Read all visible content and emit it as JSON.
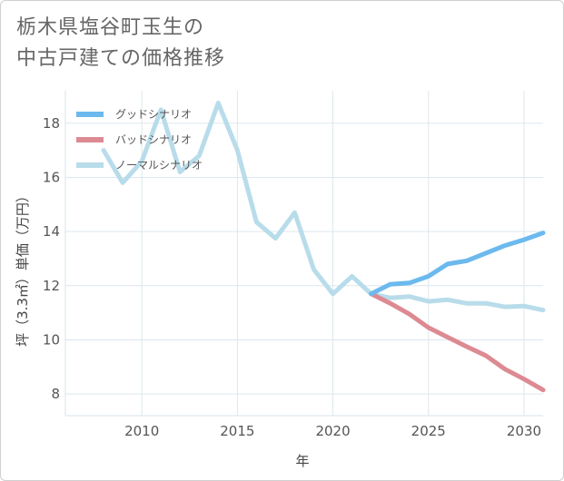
{
  "title_line1": "栃木県塩谷町玉生の",
  "title_line2": "中古戸建ての価格推移",
  "chart_data": {
    "type": "line",
    "xlabel": "年",
    "ylabel": "坪（3.3㎡）単価（万円）",
    "xlim": [
      2006,
      2031
    ],
    "ylim": [
      7.2,
      19.2
    ],
    "x_ticks": [
      2010,
      2015,
      2020,
      2025,
      2030
    ],
    "y_ticks": [
      8,
      10,
      12,
      14,
      16,
      18
    ],
    "grid": true,
    "legend_position": "top-left",
    "series": [
      {
        "name": "グッドシナリオ",
        "color": "#6cb9ee",
        "x": [
          2022,
          2023,
          2024,
          2025,
          2026,
          2027,
          2028,
          2029,
          2030,
          2031
        ],
        "y": [
          11.7,
          12.05,
          12.1,
          12.35,
          12.8,
          12.92,
          13.2,
          13.48,
          13.7,
          13.95
        ]
      },
      {
        "name": "バッドシナリオ",
        "color": "#dd8a92",
        "x": [
          2022,
          2023,
          2024,
          2025,
          2026,
          2027,
          2028,
          2029,
          2030,
          2031
        ],
        "y": [
          11.7,
          11.35,
          10.95,
          10.45,
          10.1,
          9.75,
          9.42,
          8.92,
          8.55,
          8.15
        ]
      },
      {
        "name": "ノーマルシナリオ",
        "color": "#b8dcea",
        "x": [
          2008,
          2009,
          2010,
          2011,
          2012,
          2013,
          2014,
          2015,
          2016,
          2017,
          2018,
          2019,
          2020,
          2021,
          2022,
          2023,
          2024,
          2025,
          2026,
          2027,
          2028,
          2029,
          2030,
          2031
        ],
        "y": [
          17.0,
          15.8,
          16.6,
          18.5,
          16.2,
          16.8,
          18.75,
          17.0,
          14.35,
          13.75,
          14.7,
          12.6,
          11.7,
          12.35,
          11.7,
          11.55,
          11.6,
          11.42,
          11.48,
          11.35,
          11.35,
          11.22,
          11.25,
          11.1
        ]
      }
    ]
  }
}
